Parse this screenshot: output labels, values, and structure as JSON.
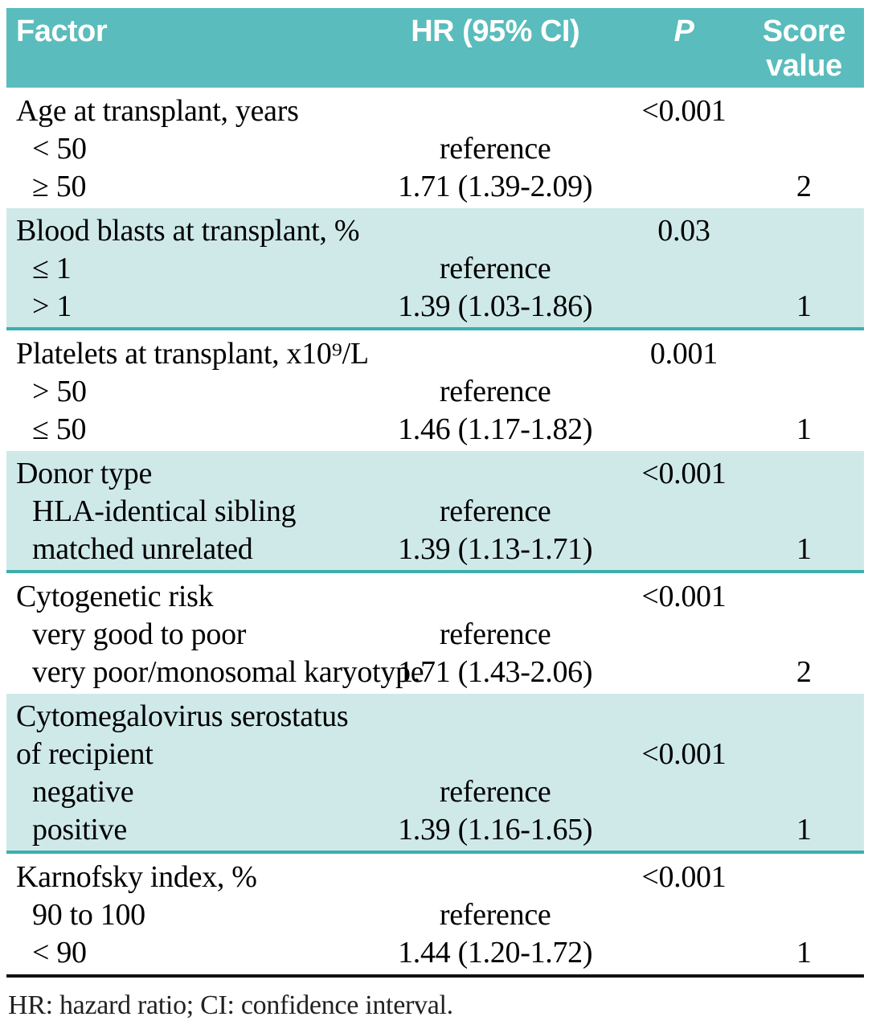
{
  "colors": {
    "header_bg": "#5abcbc",
    "band_bg": "#cfe9e9",
    "teal_rule": "#3caeae",
    "black_rule": "#111111",
    "header_text": "#ffffff",
    "body_text": "#000000",
    "footnote_text": "#222222"
  },
  "table": {
    "header": {
      "factor": "Factor",
      "hr": "HR (95% CI)",
      "p": "P",
      "score_line1": "Score",
      "score_line2": "value"
    },
    "sections": [
      {
        "bg": "white",
        "rows": [
          {
            "factor": "Age at transplant, years",
            "hr": "",
            "p": "<0.001",
            "score": "",
            "indent": false
          },
          {
            "factor": "< 50",
            "hr": "reference",
            "p": "",
            "score": "",
            "indent": true
          },
          {
            "factor": "≥ 50",
            "hr": "1.71 (1.39-2.09)",
            "p": "",
            "score": "2",
            "indent": true
          }
        ]
      },
      {
        "bg": "teal",
        "rows": [
          {
            "factor": "Blood blasts at transplant, %",
            "hr": "",
            "p": "0.03",
            "score": "",
            "indent": false
          },
          {
            "factor": "≤ 1",
            "hr": "reference",
            "p": "",
            "score": "",
            "indent": true
          },
          {
            "factor": "> 1",
            "hr": "1.39 (1.03-1.86)",
            "p": "",
            "score": "1",
            "indent": true
          }
        ]
      },
      {
        "bg": "white",
        "rows": [
          {
            "factor": "Platelets at transplant, x10⁹/L",
            "hr": "",
            "p": "0.001",
            "score": "",
            "indent": false
          },
          {
            "factor": "> 50",
            "hr": "reference",
            "p": "",
            "score": "",
            "indent": true
          },
          {
            "factor": "≤ 50",
            "hr": "1.46 (1.17-1.82)",
            "p": "",
            "score": "1",
            "indent": true
          }
        ]
      },
      {
        "bg": "teal",
        "rows": [
          {
            "factor": "Donor type",
            "hr": "",
            "p": "<0.001",
            "score": "",
            "indent": false
          },
          {
            "factor": "HLA-identical sibling",
            "hr": "reference",
            "p": "",
            "score": "",
            "indent": true
          },
          {
            "factor": "matched unrelated",
            "hr": "1.39 (1.13-1.71)",
            "p": "",
            "score": "1",
            "indent": true
          }
        ]
      },
      {
        "bg": "white",
        "rows": [
          {
            "factor": "Cytogenetic risk",
            "hr": "",
            "p": "<0.001",
            "score": "",
            "indent": false
          },
          {
            "factor": "very good to poor",
            "hr": "reference",
            "p": "",
            "score": "",
            "indent": true
          },
          {
            "factor": "very poor/monosomal karyotype",
            "hr": "1.71 (1.43-2.06)",
            "p": "",
            "score": "2",
            "indent": true
          }
        ]
      },
      {
        "bg": "teal",
        "rows": [
          {
            "factor": "Cytomegalovirus serostatus",
            "hr": "",
            "p": "",
            "score": "",
            "indent": false
          },
          {
            "factor": "of recipient",
            "hr": "",
            "p": "<0.001",
            "score": "",
            "indent": false
          },
          {
            "factor": "negative",
            "hr": "reference",
            "p": "",
            "score": "",
            "indent": true
          },
          {
            "factor": "positive",
            "hr": "1.39 (1.16-1.65)",
            "p": "",
            "score": "1",
            "indent": true
          }
        ]
      },
      {
        "bg": "white",
        "rows": [
          {
            "factor": "Karnofsky index, %",
            "hr": "",
            "p": "<0.001",
            "score": "",
            "indent": false
          },
          {
            "factor": "90 to 100",
            "hr": "reference",
            "p": "",
            "score": "",
            "indent": true
          },
          {
            "factor": "< 90",
            "hr": "1.44 (1.20-1.72)",
            "p": "",
            "score": "1",
            "indent": true
          }
        ]
      }
    ],
    "footnote": "HR: hazard ratio; CI: confidence interval."
  }
}
